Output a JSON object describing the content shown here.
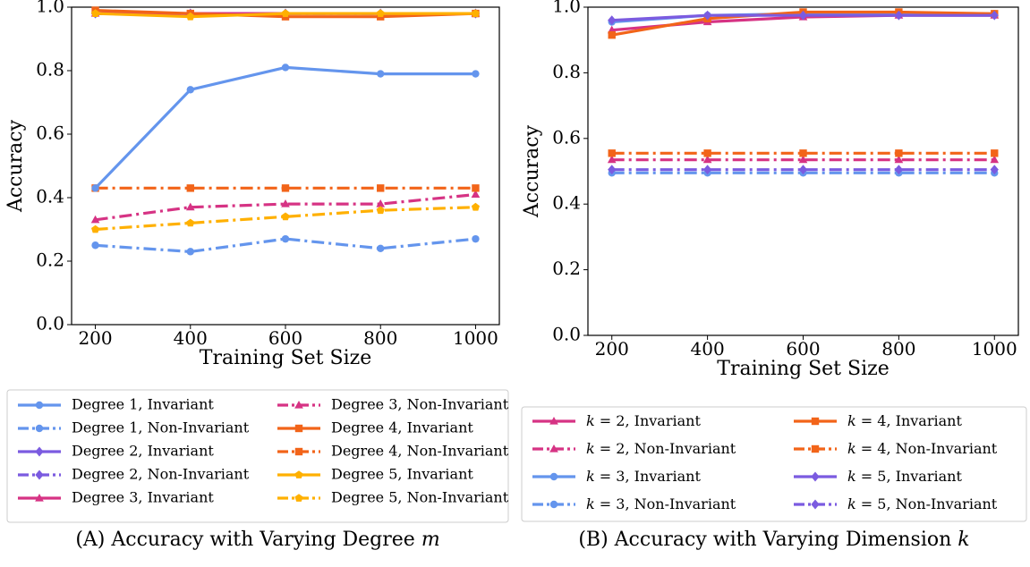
{
  "colors": {
    "degree1": "#6495ED",
    "degree2": "#7B5BE0",
    "degree3": "#D63384",
    "degree4": "#F26419",
    "degree5": "#FFB000",
    "k2": "#D63384",
    "k3": "#6495ED",
    "k4": "#F26419",
    "k5": "#7B5BE0"
  },
  "chart_data": [
    {
      "type": "line",
      "caption_prefix": "(A)",
      "caption": "Accuracy with Varying Degree m",
      "xlabel": "Training Set Size",
      "ylabel": "Accuracy",
      "x": [
        200,
        400,
        600,
        800,
        1000
      ],
      "xticks": [
        "200",
        "400",
        "600",
        "800",
        "1000"
      ],
      "yticks": [
        "0.0",
        "0.2",
        "0.4",
        "0.6",
        "0.8",
        "1.0"
      ],
      "ylim": [
        0,
        1
      ],
      "grid": false,
      "legend_placement": "below",
      "series": [
        {
          "name": "Degree 1, Invariant",
          "color_key": "degree1",
          "marker": "circle",
          "linestyle": "solid",
          "values": [
            0.43,
            0.74,
            0.81,
            0.79,
            0.79
          ]
        },
        {
          "name": "Degree 1, Non-Invariant",
          "color_key": "degree1",
          "marker": "circle",
          "linestyle": "dashdot",
          "values": [
            0.25,
            0.23,
            0.27,
            0.24,
            0.27
          ]
        },
        {
          "name": "Degree 2, Invariant",
          "color_key": "degree2",
          "marker": "diamond",
          "linestyle": "solid",
          "values": [
            0.98,
            0.98,
            0.98,
            0.98,
            0.98
          ]
        },
        {
          "name": "Degree 2, Non-Invariant",
          "color_key": "degree2",
          "marker": "diamond",
          "linestyle": "dashdot",
          "values": [
            0.98,
            0.98,
            0.98,
            0.98,
            0.98
          ]
        },
        {
          "name": "Degree 3, Invariant",
          "color_key": "degree3",
          "marker": "triangle",
          "linestyle": "solid",
          "values": [
            0.98,
            0.98,
            0.98,
            0.98,
            0.98
          ]
        },
        {
          "name": "Degree 3, Non-Invariant",
          "color_key": "degree3",
          "marker": "triangle",
          "linestyle": "dashdot",
          "values": [
            0.33,
            0.37,
            0.38,
            0.38,
            0.41
          ]
        },
        {
          "name": "Degree 4, Invariant",
          "color_key": "degree4",
          "marker": "square",
          "linestyle": "solid",
          "values": [
            0.99,
            0.98,
            0.97,
            0.97,
            0.98
          ]
        },
        {
          "name": "Degree 4, Non-Invariant",
          "color_key": "degree4",
          "marker": "square",
          "linestyle": "dashdot",
          "values": [
            0.43,
            0.43,
            0.43,
            0.43,
            0.43
          ]
        },
        {
          "name": "Degree 5, Invariant",
          "color_key": "degree5",
          "marker": "pentagon",
          "linestyle": "solid",
          "values": [
            0.98,
            0.97,
            0.98,
            0.98,
            0.98
          ]
        },
        {
          "name": "Degree 5, Non-Invariant",
          "color_key": "degree5",
          "marker": "pentagon",
          "linestyle": "dashdot",
          "values": [
            0.3,
            0.32,
            0.34,
            0.36,
            0.37
          ]
        }
      ]
    },
    {
      "type": "line",
      "caption_prefix": "(B)",
      "caption": "Accuracy with Varying Dimension k",
      "xlabel": "Training Set Size",
      "ylabel": "Accuracy",
      "x": [
        200,
        400,
        600,
        800,
        1000
      ],
      "xticks": [
        "200",
        "400",
        "600",
        "800",
        "1000"
      ],
      "yticks": [
        "0.0",
        "0.2",
        "0.4",
        "0.6",
        "0.8",
        "1.0"
      ],
      "ylim": [
        0,
        1
      ],
      "grid": false,
      "legend_placement": "below",
      "series": [
        {
          "name": "k = 2, Invariant",
          "color_key": "k2",
          "marker": "triangle",
          "linestyle": "solid",
          "values": [
            0.93,
            0.955,
            0.97,
            0.975,
            0.975
          ]
        },
        {
          "name": "k = 2, Non-Invariant",
          "color_key": "k2",
          "marker": "triangle",
          "linestyle": "dashdot",
          "values": [
            0.535,
            0.535,
            0.535,
            0.535,
            0.535
          ]
        },
        {
          "name": "k = 3, Invariant",
          "color_key": "k3",
          "marker": "circle",
          "linestyle": "solid",
          "values": [
            0.955,
            0.975,
            0.98,
            0.98,
            0.98
          ]
        },
        {
          "name": "k = 3, Non-Invariant",
          "color_key": "k3",
          "marker": "circle",
          "linestyle": "dashdot",
          "values": [
            0.495,
            0.495,
            0.495,
            0.495,
            0.495
          ]
        },
        {
          "name": "k = 4, Invariant",
          "color_key": "k4",
          "marker": "square",
          "linestyle": "solid",
          "values": [
            0.915,
            0.965,
            0.985,
            0.985,
            0.98
          ]
        },
        {
          "name": "k = 4, Non-Invariant",
          "color_key": "k4",
          "marker": "square",
          "linestyle": "dashdot",
          "values": [
            0.555,
            0.555,
            0.555,
            0.555,
            0.555
          ]
        },
        {
          "name": "k = 5, Invariant",
          "color_key": "k5",
          "marker": "diamond",
          "linestyle": "solid",
          "values": [
            0.96,
            0.975,
            0.975,
            0.975,
            0.975
          ]
        },
        {
          "name": "k = 5, Non-Invariant",
          "color_key": "k5",
          "marker": "diamond",
          "linestyle": "dashdot",
          "values": [
            0.505,
            0.505,
            0.505,
            0.505,
            0.505
          ]
        }
      ]
    }
  ]
}
